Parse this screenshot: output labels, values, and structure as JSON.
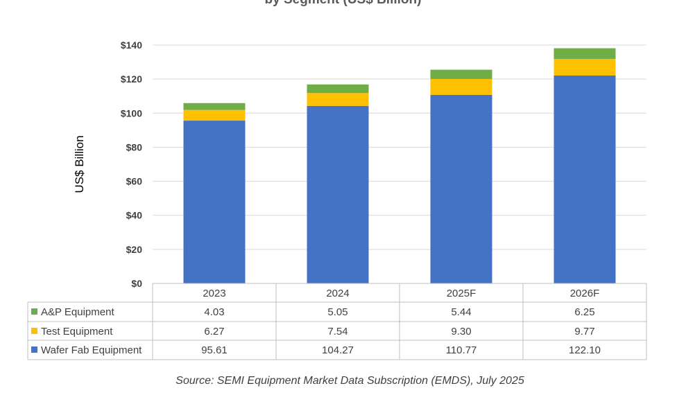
{
  "chart_data": {
    "type": "stacked-bar",
    "title": "by Segment (US$ Billion)",
    "ylabel": "US$ Billion",
    "ylim": [
      0,
      140
    ],
    "yticks": [
      "$0",
      "$20",
      "$40",
      "$60",
      "$80",
      "$100",
      "$120",
      "$140"
    ],
    "ytick_values": [
      0,
      20,
      40,
      60,
      80,
      100,
      120,
      140
    ],
    "grid": true,
    "legend": "data-table",
    "categories": [
      "2023",
      "2024",
      "2025F",
      "2026F"
    ],
    "series": [
      {
        "name": "A&P Equipment",
        "color": "#70AD47",
        "values": [
          4.03,
          5.05,
          5.44,
          6.25
        ],
        "labels": [
          "4.03",
          "5.05",
          "5.44",
          "6.25"
        ]
      },
      {
        "name": "Test Equipment",
        "color": "#FFC000",
        "values": [
          6.27,
          7.54,
          9.3,
          9.77
        ],
        "labels": [
          "6.27",
          "7.54",
          "9.30",
          "9.77"
        ]
      },
      {
        "name": "Wafer Fab Equipment",
        "color": "#4472C4",
        "values": [
          95.61,
          104.27,
          110.77,
          122.1
        ],
        "labels": [
          "95.61",
          "104.27",
          "110.77",
          "122.10"
        ]
      }
    ]
  },
  "source": "Source: SEMI Equipment Market Data Subscription (EMDS), July 2025"
}
